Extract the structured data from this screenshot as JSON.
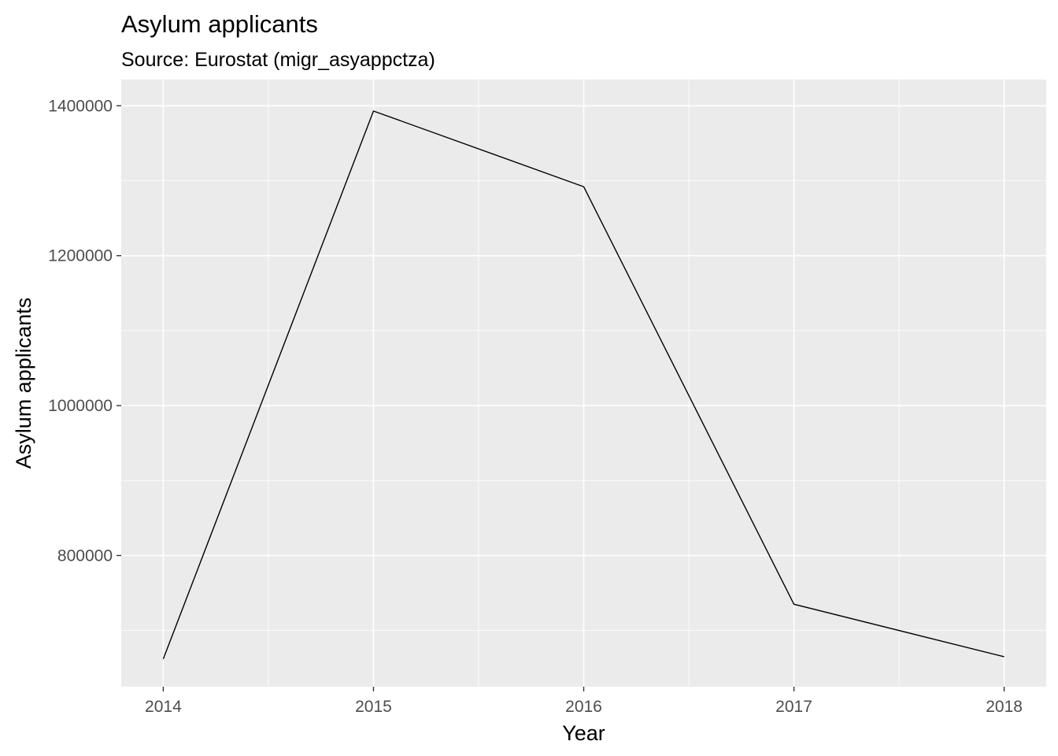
{
  "chart_data": {
    "type": "line",
    "title": "Asylum applicants",
    "subtitle": "Source: Eurostat (migr_asyappctza)",
    "xlabel": "Year",
    "ylabel": "Asylum applicants",
    "x": [
      2014,
      2015,
      2016,
      2017,
      2018
    ],
    "series": [
      {
        "values": [
          662000,
          1393000,
          1292000,
          735000,
          665000
        ]
      }
    ],
    "xlim": [
      2013.8,
      2018.2
    ],
    "ylim": [
      625000,
      1435000
    ],
    "x_ticks": [
      "2014",
      "2015",
      "2016",
      "2017",
      "2018"
    ],
    "y_ticks": [
      "800000",
      "1000000",
      "1200000",
      "1400000"
    ],
    "grid": true,
    "legend": "none",
    "colors": {
      "panel": "#ebebeb",
      "grid": "#ffffff",
      "line": "#000000",
      "ticks": "#4d4d4d"
    }
  }
}
